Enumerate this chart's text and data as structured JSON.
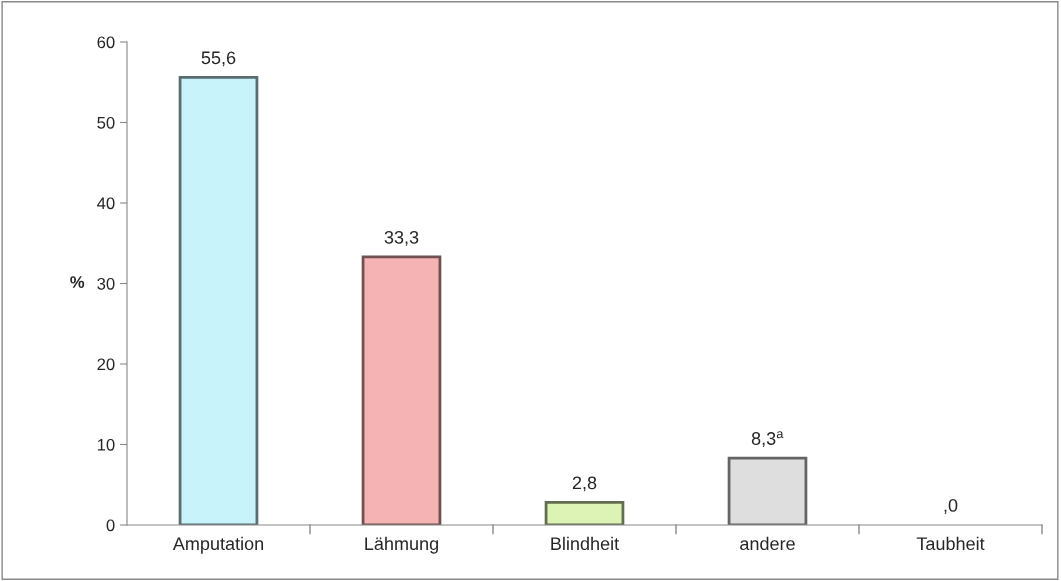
{
  "chart_data": {
    "type": "bar",
    "ylabel": "%",
    "categories": [
      "Amputation",
      "Lähmung",
      "Blindheit",
      "andere",
      "Taubheit"
    ],
    "values": [
      55.6,
      33.3,
      2.8,
      8.3,
      0
    ],
    "colors": [
      "#c9f3fb",
      "#f6b3b3",
      "#ddf3b5",
      "#dedede",
      "#dedede"
    ],
    "value_labels": [
      "55,6",
      "33,3",
      "2,8",
      "8,3$^{a}$",
      ",0"
    ],
    "ylim": [
      0,
      60
    ],
    "yticks": [
      0,
      10,
      20,
      30,
      40,
      50,
      60
    ],
    "grid": false,
    "legend": false
  }
}
